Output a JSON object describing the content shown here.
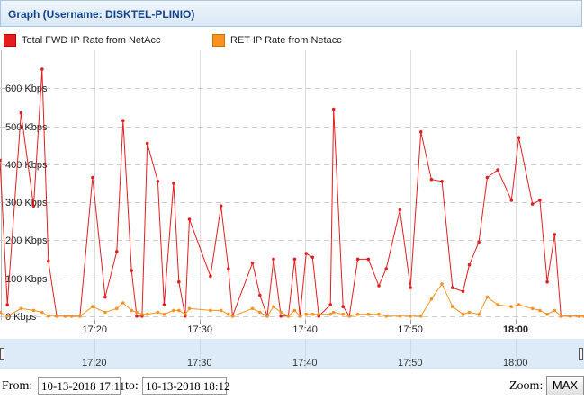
{
  "panel": {
    "title": "Graph (Username: DISKTEL-PLINIO)"
  },
  "chart_data": {
    "type": "line",
    "y_ticks": [
      "0 Kbps",
      "100 Kbps",
      "200 Kbps",
      "300 Kbps",
      "400 Kbps",
      "500 Kbps",
      "600 Kbps"
    ],
    "y_tick_values": [
      0,
      100,
      200,
      300,
      400,
      500,
      600
    ],
    "ylim": [
      -10,
      700
    ],
    "xlim": [
      11.0,
      66.5
    ],
    "x_ticks": [
      {
        "value": 20,
        "label": "17:20",
        "bold": false
      },
      {
        "value": 30,
        "label": "17:30",
        "bold": false
      },
      {
        "value": 40,
        "label": "17:40",
        "bold": false
      },
      {
        "value": 50,
        "label": "17:50",
        "bold": false
      },
      {
        "value": 60,
        "label": "18:00",
        "bold": true
      }
    ],
    "grid": true,
    "series": [
      {
        "name": "Total FWD IP Rate from NetAcc",
        "color": "#e31e1e",
        "x": [
          11,
          11.7,
          13.0,
          14.2,
          15.0,
          15.6,
          16.4,
          17.2,
          17.8,
          18.6,
          19.8,
          21,
          22.1,
          22.7,
          23.5,
          24.0,
          24.5,
          25,
          26,
          26.6,
          27.5,
          28,
          28.6,
          29,
          31,
          32,
          32.7,
          33.1,
          35,
          35.7,
          36.4,
          37,
          37.7,
          38.4,
          39,
          39.5,
          40.1,
          40.7,
          41.3,
          42.4,
          42.7,
          43.6,
          44.2,
          45,
          46.0,
          47,
          47.7,
          49,
          50,
          51,
          52,
          53,
          54,
          55,
          55.6,
          56.5,
          57.3,
          58.3,
          59.6,
          60.3,
          61.6,
          62.3,
          63,
          63.7,
          64.3,
          65.2,
          66,
          66.5
        ],
        "y": [
          410,
          30,
          535,
          290,
          650,
          145,
          0,
          0,
          0,
          0,
          365,
          50,
          170,
          515,
          120,
          0,
          0,
          455,
          355,
          30,
          350,
          90,
          0,
          255,
          105,
          290,
          125,
          0,
          140,
          55,
          0,
          150,
          0,
          0,
          150,
          0,
          165,
          155,
          0,
          30,
          545,
          25,
          0,
          150,
          150,
          80,
          125,
          280,
          75,
          485,
          360,
          355,
          75,
          65,
          135,
          195,
          365,
          385,
          305,
          470,
          295,
          305,
          90,
          215,
          0,
          0,
          0,
          0
        ]
      },
      {
        "name": "RET IP Rate from Netacc",
        "color": "#f7931e",
        "x": [
          11,
          11.7,
          13.0,
          14.2,
          15.0,
          15.6,
          16.4,
          17.2,
          17.8,
          18.6,
          19.8,
          21,
          22.1,
          22.7,
          23.5,
          24.0,
          24.5,
          25,
          26,
          26.6,
          27.5,
          28,
          28.6,
          29,
          31,
          32,
          32.7,
          33.1,
          35,
          35.7,
          36.4,
          37,
          37.7,
          38.4,
          39,
          39.5,
          40.1,
          40.7,
          41.3,
          42.4,
          42.7,
          43.6,
          44.2,
          45,
          46.0,
          47,
          47.7,
          49,
          50,
          51,
          52,
          53,
          54,
          55,
          55.6,
          56.5,
          57.3,
          58.3,
          59.6,
          60.3,
          61.6,
          62.3,
          63,
          63.7,
          64.3,
          65.2,
          66,
          66.5
        ],
        "y": [
          10,
          0,
          20,
          15,
          10,
          0,
          0,
          0,
          0,
          0,
          25,
          10,
          20,
          35,
          15,
          10,
          5,
          5,
          10,
          5,
          15,
          15,
          5,
          20,
          15,
          15,
          5,
          0,
          20,
          10,
          0,
          25,
          10,
          0,
          15,
          0,
          5,
          5,
          5,
          5,
          10,
          5,
          0,
          5,
          5,
          5,
          0,
          0,
          0,
          0,
          45,
          85,
          25,
          5,
          10,
          5,
          50,
          30,
          25,
          30,
          20,
          15,
          5,
          15,
          0,
          0,
          0,
          0
        ]
      }
    ]
  },
  "navigator": {
    "ticks": [
      {
        "value": 20,
        "label": "17:20"
      },
      {
        "value": 30,
        "label": "17:30"
      },
      {
        "value": 40,
        "label": "17:40"
      },
      {
        "value": 50,
        "label": "17:50"
      },
      {
        "value": 60,
        "label": "18:00"
      }
    ]
  },
  "footer": {
    "from_label": "From:",
    "from_value": "10-13-2018 17:11",
    "to_label": "to:",
    "to_value": "10-13-2018 18:12",
    "zoom_label": "Zoom:",
    "max_label": "MAX"
  }
}
